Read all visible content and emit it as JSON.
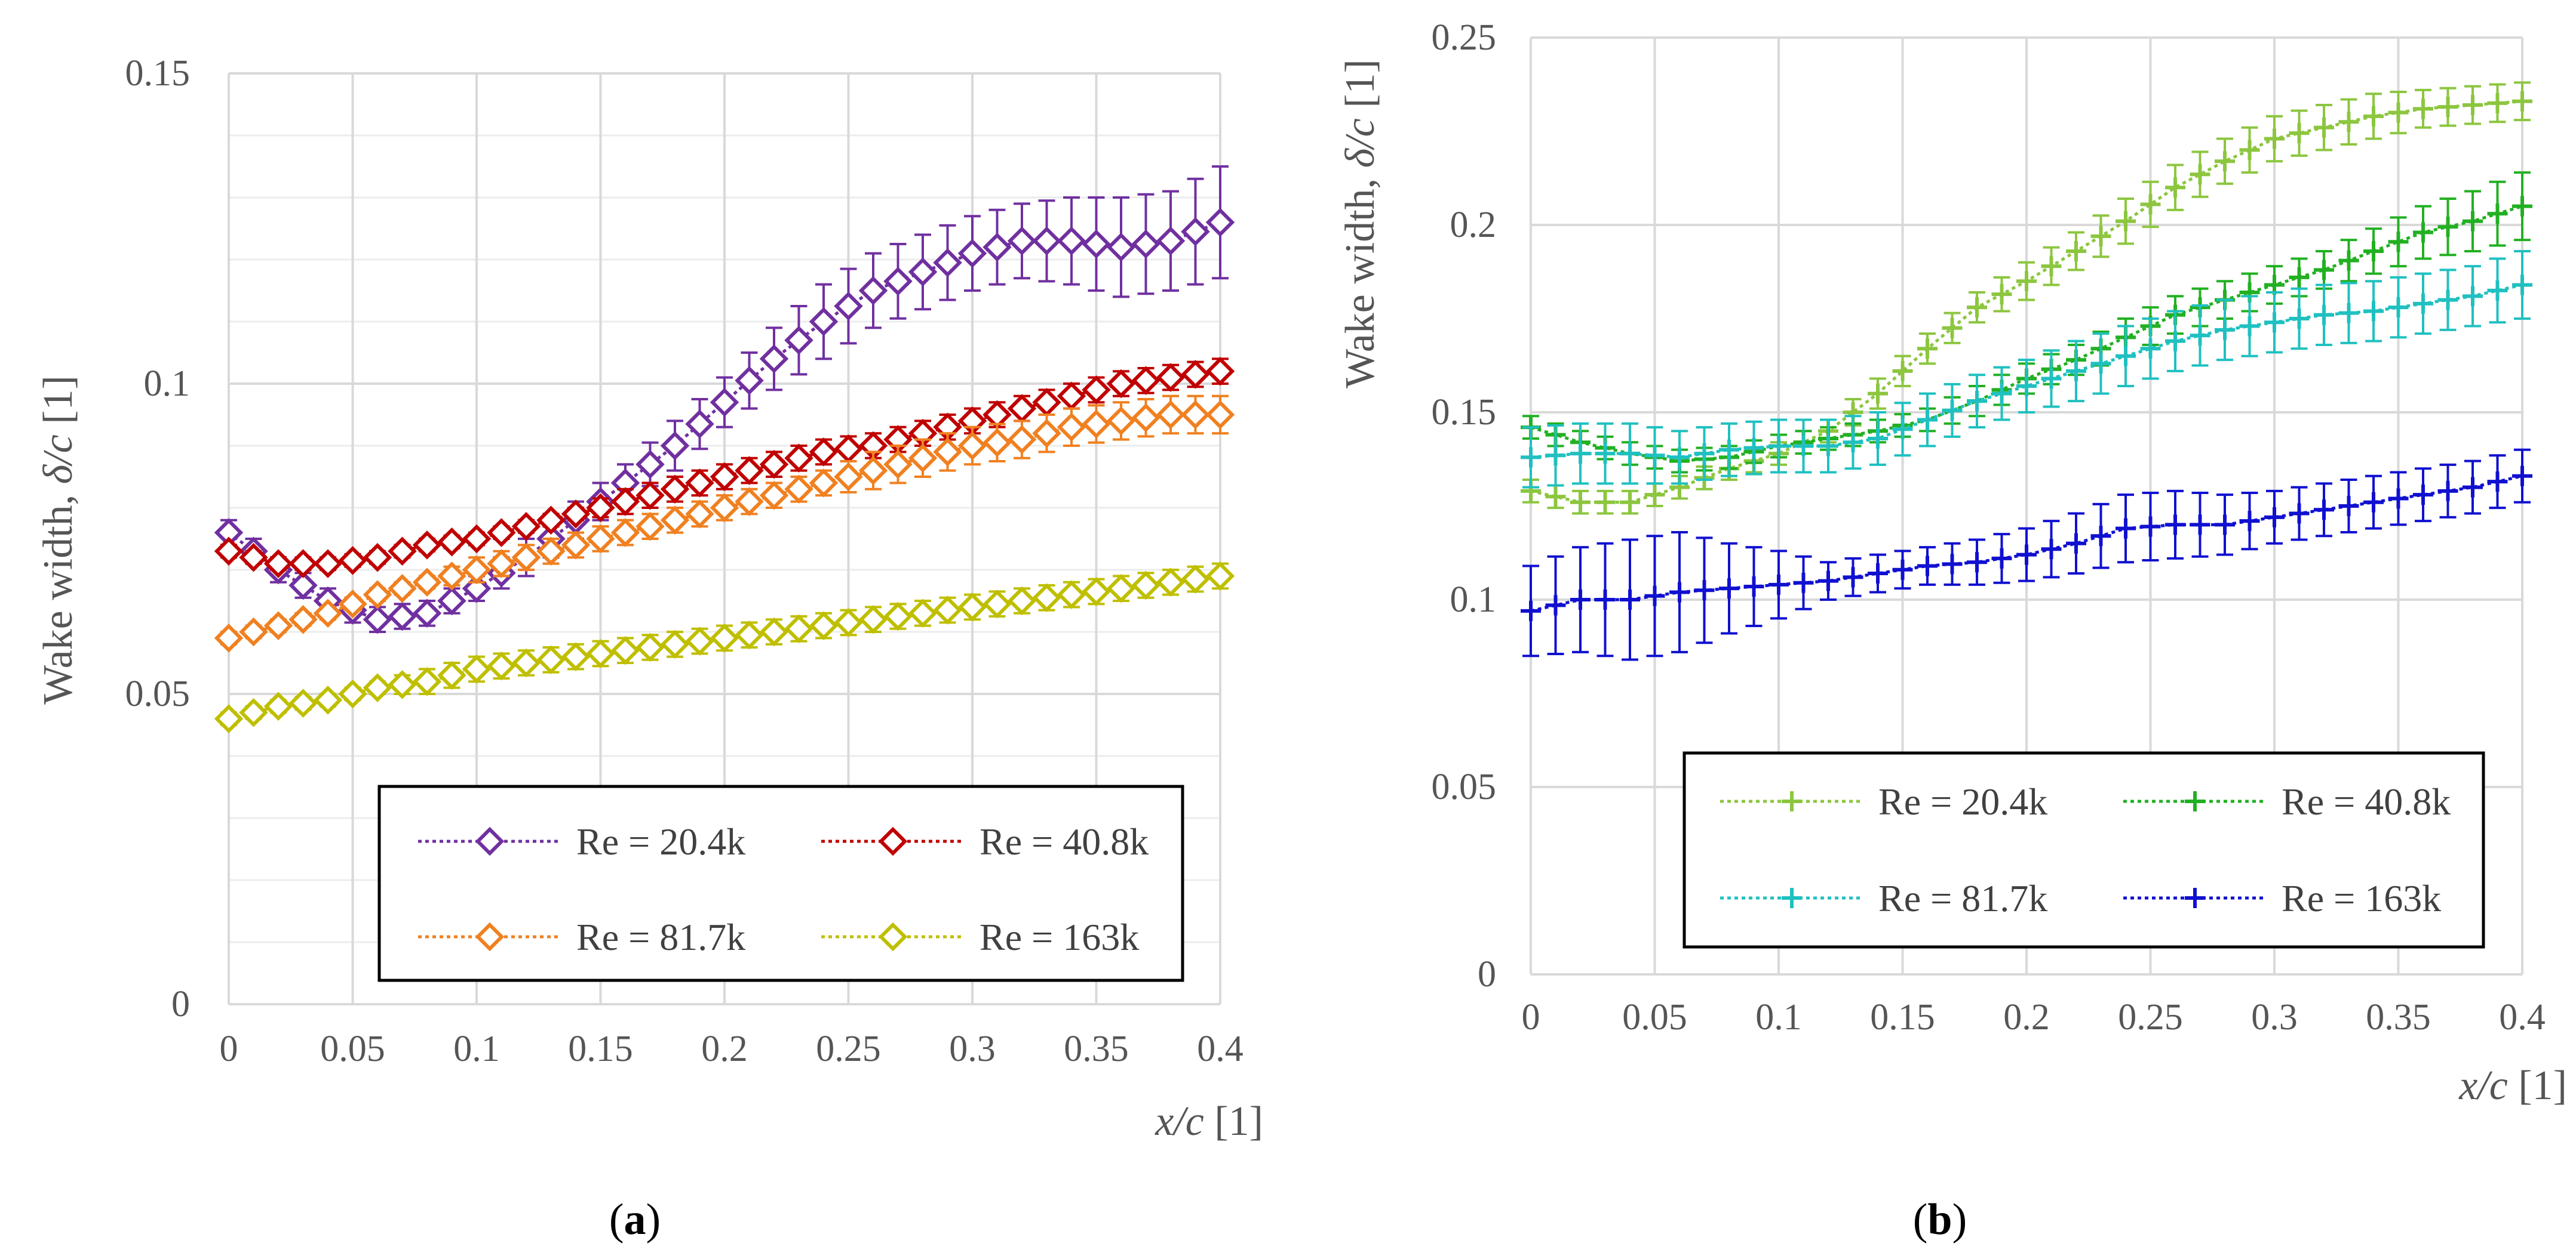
{
  "chart_data": [
    {
      "type": "line",
      "panel_label": "(a)",
      "panel_letter": "a",
      "xlabel": "x/c [1]",
      "xlabel_var": "x/c",
      "xlabel_unit": "[1]",
      "ylabel": "Wake width, δ/c [1]",
      "ylabel_pre": "Wake width, ",
      "ylabel_var": "δ/c",
      "ylabel_unit": " [1]",
      "xlim": [
        0,
        0.4
      ],
      "ylim": [
        0,
        0.15
      ],
      "x_ticks": [
        0,
        0.05,
        0.1,
        0.15,
        0.2,
        0.25,
        0.3,
        0.35,
        0.4
      ],
      "x_tick_labels": [
        "0",
        "0.05",
        "0.1",
        "0.15",
        "0.2",
        "0.25",
        "0.3",
        "0.35",
        "0.4"
      ],
      "y_ticks": [
        0,
        0.05,
        0.1,
        0.15
      ],
      "y_tick_labels": [
        "0",
        "0.05",
        "0.1",
        "0.15"
      ],
      "y_minor_step": 0.01,
      "grid": true,
      "marker": "diamond",
      "legend_position": "bottom-right",
      "series": [
        {
          "name": "Re = 20.4k",
          "color": "#7030A0",
          "x": [
            0,
            0.02,
            0.04,
            0.06,
            0.08,
            0.1,
            0.12,
            0.14,
            0.16,
            0.18,
            0.2,
            0.22,
            0.24,
            0.26,
            0.28,
            0.3,
            0.32,
            0.34,
            0.36,
            0.38,
            0.4
          ],
          "y": [
            0.076,
            0.07,
            0.065,
            0.062,
            0.063,
            0.067,
            0.072,
            0.078,
            0.084,
            0.09,
            0.097,
            0.104,
            0.11,
            0.115,
            0.118,
            0.121,
            0.123,
            0.123,
            0.122,
            0.123,
            0.126
          ],
          "err": [
            0.002,
            0.002,
            0.002,
            0.002,
            0.002,
            0.002,
            0.003,
            0.003,
            0.003,
            0.004,
            0.004,
            0.005,
            0.006,
            0.006,
            0.006,
            0.006,
            0.006,
            0.007,
            0.008,
            0.008,
            0.009
          ]
        },
        {
          "name": "Re = 40.8k",
          "color": "#C00000",
          "x": [
            0,
            0.02,
            0.04,
            0.06,
            0.08,
            0.1,
            0.12,
            0.14,
            0.16,
            0.18,
            0.2,
            0.22,
            0.24,
            0.26,
            0.28,
            0.3,
            0.32,
            0.34,
            0.36,
            0.38,
            0.4
          ],
          "y": [
            0.073,
            0.071,
            0.071,
            0.072,
            0.074,
            0.075,
            0.077,
            0.079,
            0.081,
            0.083,
            0.085,
            0.087,
            0.089,
            0.09,
            0.092,
            0.094,
            0.096,
            0.098,
            0.1,
            0.101,
            0.102
          ],
          "err": [
            0.001,
            0.001,
            0.001,
            0.001,
            0.001,
            0.001,
            0.001,
            0.001,
            0.002,
            0.002,
            0.002,
            0.002,
            0.002,
            0.002,
            0.002,
            0.002,
            0.002,
            0.002,
            0.002,
            0.002,
            0.002
          ]
        },
        {
          "name": "Re = 81.7k",
          "color": "#F08020",
          "x": [
            0,
            0.02,
            0.04,
            0.06,
            0.08,
            0.1,
            0.12,
            0.14,
            0.16,
            0.18,
            0.2,
            0.22,
            0.24,
            0.26,
            0.28,
            0.3,
            0.32,
            0.34,
            0.36,
            0.38,
            0.4
          ],
          "y": [
            0.059,
            0.061,
            0.063,
            0.066,
            0.068,
            0.07,
            0.072,
            0.074,
            0.076,
            0.078,
            0.08,
            0.082,
            0.084,
            0.086,
            0.088,
            0.09,
            0.091,
            0.093,
            0.094,
            0.095,
            0.095
          ],
          "err": [
            0.001,
            0.001,
            0.001,
            0.001,
            0.001,
            0.002,
            0.002,
            0.002,
            0.002,
            0.002,
            0.002,
            0.002,
            0.002,
            0.003,
            0.003,
            0.003,
            0.003,
            0.003,
            0.003,
            0.003,
            0.003
          ]
        },
        {
          "name": "Re = 163k",
          "color": "#BFBF00",
          "x": [
            0,
            0.02,
            0.04,
            0.06,
            0.08,
            0.1,
            0.12,
            0.14,
            0.16,
            0.18,
            0.2,
            0.22,
            0.24,
            0.26,
            0.28,
            0.3,
            0.32,
            0.34,
            0.36,
            0.38,
            0.4
          ],
          "y": [
            0.046,
            0.048,
            0.049,
            0.051,
            0.052,
            0.054,
            0.055,
            0.056,
            0.057,
            0.058,
            0.059,
            0.06,
            0.061,
            0.062,
            0.063,
            0.064,
            0.065,
            0.066,
            0.067,
            0.068,
            0.069
          ],
          "err": [
            0.001,
            0.001,
            0.001,
            0.001,
            0.002,
            0.002,
            0.002,
            0.002,
            0.002,
            0.002,
            0.002,
            0.002,
            0.002,
            0.002,
            0.002,
            0.002,
            0.002,
            0.002,
            0.002,
            0.002,
            0.002
          ]
        }
      ]
    },
    {
      "type": "line",
      "panel_label": "(b)",
      "panel_letter": "b",
      "xlabel": "x/c [1]",
      "xlabel_var": "x/c",
      "xlabel_unit": "[1]",
      "ylabel": "Wake width, δ/c [1]",
      "ylabel_pre": "Wake width, ",
      "ylabel_var": "δ/c",
      "ylabel_unit": " [1]",
      "xlim": [
        0,
        0.4
      ],
      "ylim": [
        0,
        0.25
      ],
      "x_ticks": [
        0,
        0.05,
        0.1,
        0.15,
        0.2,
        0.25,
        0.3,
        0.35,
        0.4
      ],
      "x_tick_labels": [
        "0",
        "0.05",
        "0.1",
        "0.15",
        "0.2",
        "0.25",
        "0.3",
        "0.35",
        "0.4"
      ],
      "y_ticks": [
        0,
        0.05,
        0.1,
        0.15,
        0.2,
        0.25
      ],
      "y_tick_labels": [
        "0",
        "0.05",
        "0.1",
        "0.15",
        "0.2",
        "0.25"
      ],
      "grid": true,
      "marker": "plus",
      "legend_position": "bottom-right",
      "series": [
        {
          "name": "Re = 20.4k",
          "color": "#8CC63F",
          "x": [
            0,
            0.02,
            0.04,
            0.06,
            0.08,
            0.1,
            0.12,
            0.14,
            0.16,
            0.18,
            0.2,
            0.22,
            0.24,
            0.26,
            0.28,
            0.3,
            0.32,
            0.34,
            0.36,
            0.38,
            0.4
          ],
          "y": [
            0.129,
            0.126,
            0.126,
            0.13,
            0.135,
            0.139,
            0.145,
            0.155,
            0.167,
            0.178,
            0.185,
            0.193,
            0.201,
            0.21,
            0.217,
            0.223,
            0.226,
            0.229,
            0.231,
            0.232,
            0.233
          ],
          "err": [
            0.003,
            0.003,
            0.003,
            0.003,
            0.003,
            0.003,
            0.003,
            0.004,
            0.004,
            0.004,
            0.005,
            0.005,
            0.006,
            0.006,
            0.006,
            0.006,
            0.006,
            0.006,
            0.005,
            0.005,
            0.005
          ]
        },
        {
          "name": "Re = 40.8k",
          "color": "#22B022",
          "x": [
            0,
            0.02,
            0.04,
            0.06,
            0.08,
            0.1,
            0.12,
            0.14,
            0.16,
            0.18,
            0.2,
            0.22,
            0.24,
            0.26,
            0.28,
            0.3,
            0.32,
            0.34,
            0.36,
            0.38,
            0.4
          ],
          "y": [
            0.146,
            0.142,
            0.139,
            0.137,
            0.138,
            0.141,
            0.143,
            0.145,
            0.148,
            0.153,
            0.159,
            0.164,
            0.17,
            0.176,
            0.18,
            0.184,
            0.188,
            0.193,
            0.198,
            0.201,
            0.205
          ],
          "err": [
            0.003,
            0.003,
            0.003,
            0.003,
            0.003,
            0.003,
            0.003,
            0.003,
            0.003,
            0.004,
            0.004,
            0.004,
            0.005,
            0.005,
            0.005,
            0.005,
            0.005,
            0.006,
            0.007,
            0.008,
            0.009
          ]
        },
        {
          "name": "Re = 81.7k",
          "color": "#20C0C0",
          "x": [
            0,
            0.02,
            0.04,
            0.06,
            0.08,
            0.1,
            0.12,
            0.14,
            0.16,
            0.18,
            0.2,
            0.22,
            0.24,
            0.26,
            0.28,
            0.3,
            0.32,
            0.34,
            0.36,
            0.38,
            0.4
          ],
          "y": [
            0.138,
            0.139,
            0.139,
            0.138,
            0.14,
            0.141,
            0.141,
            0.143,
            0.148,
            0.153,
            0.157,
            0.161,
            0.165,
            0.169,
            0.172,
            0.174,
            0.176,
            0.177,
            0.179,
            0.181,
            0.184
          ],
          "err": [
            0.008,
            0.008,
            0.008,
            0.007,
            0.007,
            0.007,
            0.007,
            0.007,
            0.007,
            0.007,
            0.007,
            0.008,
            0.008,
            0.008,
            0.008,
            0.008,
            0.008,
            0.008,
            0.008,
            0.008,
            0.009
          ]
        },
        {
          "name": "Re = 163k",
          "color": "#1010D0",
          "x": [
            0,
            0.02,
            0.04,
            0.06,
            0.08,
            0.1,
            0.12,
            0.14,
            0.16,
            0.18,
            0.2,
            0.22,
            0.24,
            0.26,
            0.28,
            0.3,
            0.32,
            0.34,
            0.36,
            0.38,
            0.4
          ],
          "y": [
            0.097,
            0.1,
            0.1,
            0.102,
            0.103,
            0.104,
            0.105,
            0.107,
            0.109,
            0.11,
            0.112,
            0.115,
            0.119,
            0.12,
            0.12,
            0.122,
            0.124,
            0.126,
            0.128,
            0.13,
            0.133
          ],
          "err": [
            0.012,
            0.014,
            0.016,
            0.016,
            0.012,
            0.009,
            0.005,
            0.005,
            0.005,
            0.006,
            0.007,
            0.008,
            0.009,
            0.009,
            0.008,
            0.007,
            0.007,
            0.007,
            0.007,
            0.007,
            0.007
          ]
        }
      ]
    }
  ]
}
